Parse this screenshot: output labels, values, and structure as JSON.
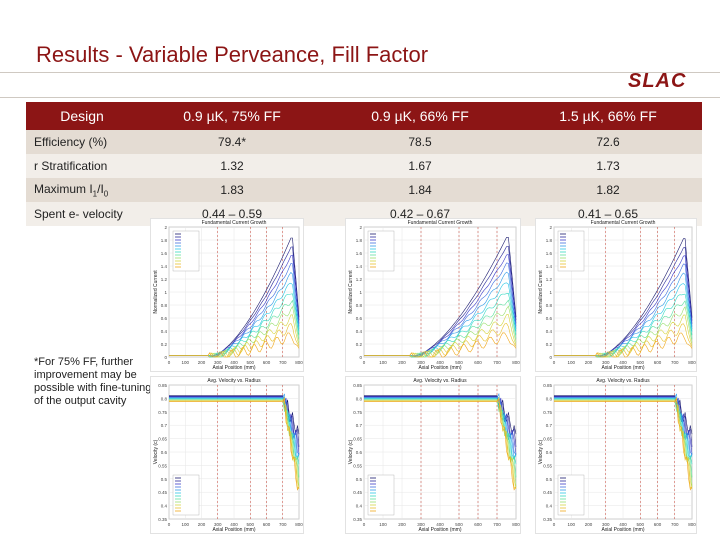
{
  "slide": {
    "title": "Results - Variable Perveance, Fill Factor",
    "logo_text": "SLAC",
    "footnote": "*For 75% FF, further improvement may be possible with fine-tuning of the output cavity"
  },
  "table": {
    "headers": [
      "Design",
      "0.9 µK, 75% FF",
      "0.9 µK, 66% FF",
      "1.5 µK, 66% FF"
    ],
    "rows": [
      {
        "label": "Efficiency (%)",
        "values": [
          "79.4*",
          "78.5",
          "72.6"
        ]
      },
      {
        "label": "r Stratification",
        "values": [
          "1.32",
          "1.67",
          "1.73"
        ]
      },
      {
        "label": "Maximum I1/I0",
        "values": [
          "1.83",
          "1.84",
          "1.82"
        ]
      },
      {
        "label": "Spent e- velocity",
        "values": [
          "0.44 – 0.59",
          "0.42 – 0.67",
          "0.41 – 0.65"
        ]
      }
    ]
  },
  "plots": {
    "current_titles": [
      "Fundamental Current Growth",
      "Fundamental Current Growth",
      "Fundamental Current Growth"
    ],
    "velocity_titles": [
      "Avg. Velocity vs. Radius",
      "Avg. Velocity vs. Radius",
      "Avg. Velocity vs. Radius"
    ],
    "current_ylabel": "Normalized Current",
    "velocity_ylabel": "Velocity (c)",
    "xlabel": "Axial Position (mm)",
    "x_ticks": [
      "0",
      "100",
      "200",
      "300",
      "400",
      "500",
      "600",
      "700",
      "800"
    ],
    "current_y_ticks": [
      "0",
      "0.2",
      "0.4",
      "0.6",
      "0.8",
      "1",
      "1.2",
      "1.4",
      "1.6",
      "1.8",
      "2"
    ],
    "velocity_y_ticks": [
      "0.35",
      "0.4",
      "0.45",
      "0.5",
      "0.55",
      "0.6",
      "0.65",
      "0.7",
      "0.75",
      "0.8",
      "0.85"
    ]
  },
  "chart_data": [
    {
      "type": "line",
      "title": "Fundamental Current Growth",
      "xlabel": "Axial Position (mm)",
      "ylabel": "Normalized Current",
      "xlim": [
        0,
        800
      ],
      "ylim": [
        0,
        2
      ],
      "series_count": 12,
      "peak": 1.83
    },
    {
      "type": "line",
      "title": "Fundamental Current Growth",
      "xlabel": "Axial Position (mm)",
      "ylabel": "Normalized Current",
      "xlim": [
        0,
        800
      ],
      "ylim": [
        0,
        2
      ],
      "series_count": 12,
      "peak": 1.84
    },
    {
      "type": "line",
      "title": "Fundamental Current Growth",
      "xlabel": "Axial Position (mm)",
      "ylabel": "Normalized Current",
      "xlim": [
        0,
        800
      ],
      "ylim": [
        0,
        2
      ],
      "series_count": 12,
      "peak": 1.82
    },
    {
      "type": "line",
      "title": "Avg. Velocity vs. Radius",
      "xlabel": "Axial Position (mm)",
      "ylabel": "Velocity (c)",
      "xlim": [
        0,
        800
      ],
      "ylim": [
        0.35,
        0.85
      ],
      "series_count": 12
    },
    {
      "type": "line",
      "title": "Avg. Velocity vs. Radius",
      "xlabel": "Axial Position (mm)",
      "ylabel": "Velocity (c)",
      "xlim": [
        0,
        800
      ],
      "ylim": [
        0.35,
        0.85
      ],
      "series_count": 12
    },
    {
      "type": "line",
      "title": "Avg. Velocity vs. Radius",
      "xlabel": "Axial Position (mm)",
      "ylabel": "Velocity (c)",
      "xlim": [
        0,
        800
      ],
      "ylim": [
        0.35,
        0.85
      ],
      "series_count": 12
    }
  ],
  "colors": {
    "accent": "#8c1515",
    "header_row": "#8c1515",
    "row_odd": "#e4dcd3",
    "row_even": "#f2eee9",
    "series": [
      "#1a1a6e",
      "#2c2c9c",
      "#3b3bc9",
      "#3f6fe0",
      "#2f9be8",
      "#2bc7e6",
      "#36d9c2",
      "#5fe0a0",
      "#9be070",
      "#d6d642",
      "#e8c22e",
      "#f0a81c"
    ]
  }
}
